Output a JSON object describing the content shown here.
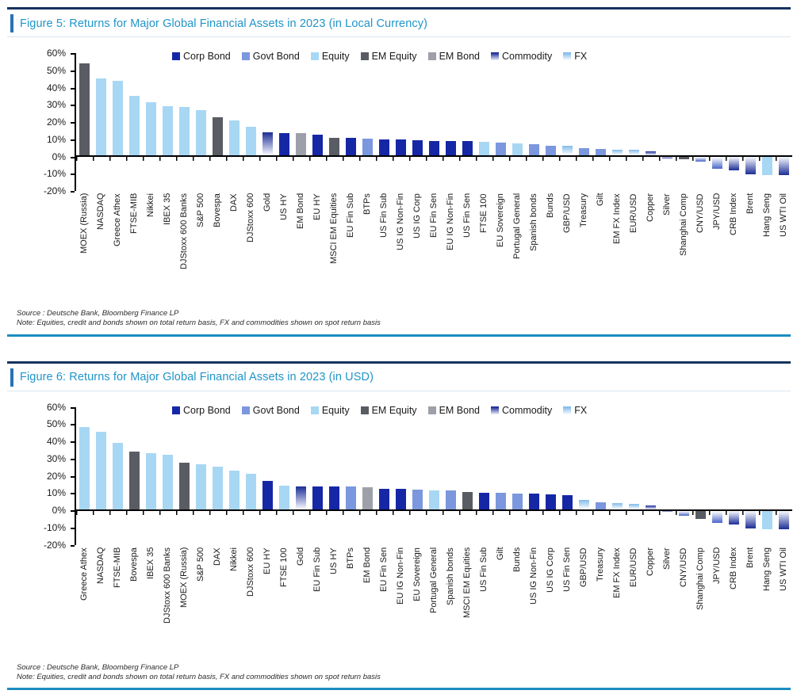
{
  "colors": {
    "corp_bond": "#1627a6",
    "govt_bond": "#7b97de",
    "equity": "#a8d7f4",
    "em_equity": "#5a5c64",
    "em_bond": "#9da0a9",
    "commodity": "#1c2d96",
    "fx_positive": "#82bbeb",
    "fx_negative": "#4b66c8",
    "title_text": "#2095c8",
    "title_accent": "#2a72b5",
    "top_rule": "#14335f",
    "bottom_rule": "#1b8dc0"
  },
  "chart_data": [
    {
      "type": "bar",
      "title": "Figure 5: Returns for Major Global Financial Assets in 2023 (in Local Currency)",
      "source": "Source : Deutsche Bank, Bloomberg Finance LP",
      "note": "Note: Equities, credit and bonds shown on total return basis, FX and commodities shown on spot return basis",
      "ylim": [
        -20,
        60
      ],
      "ytick_step": 10,
      "grid": false,
      "legend_position": "top",
      "y_ticks": [
        "60%",
        "50%",
        "40%",
        "30%",
        "20%",
        "10%",
        "0%",
        "-10%",
        "-20%"
      ],
      "legend": [
        {
          "label": "Corp Bond",
          "category": "corp-bond"
        },
        {
          "label": "Govt Bond",
          "category": "govt-bond"
        },
        {
          "label": "Equity",
          "category": "equity"
        },
        {
          "label": "EM Equity",
          "category": "em-equity"
        },
        {
          "label": "EM Bond",
          "category": "em-bond"
        },
        {
          "label": "Commodity",
          "category": "commodity"
        },
        {
          "label": "FX",
          "category": "fx"
        }
      ],
      "bars": [
        {
          "label": "MOEX (Russia)",
          "value": 53.5,
          "category": "em-equity"
        },
        {
          "label": "NASDAQ",
          "value": 44.7,
          "category": "equity"
        },
        {
          "label": "Greece Athex",
          "value": 43.4,
          "category": "equity"
        },
        {
          "label": "FTSE-MIB",
          "value": 34.3,
          "category": "equity"
        },
        {
          "label": "Nikkei",
          "value": 31.0,
          "category": "equity"
        },
        {
          "label": "IBEX 35",
          "value": 28.3,
          "category": "equity"
        },
        {
          "label": "DJStoxx 600 Banks",
          "value": 27.9,
          "category": "equity"
        },
        {
          "label": "S&P 500",
          "value": 26.3,
          "category": "equity"
        },
        {
          "label": "Bovespa",
          "value": 22.3,
          "category": "em-equity"
        },
        {
          "label": "DAX",
          "value": 20.3,
          "category": "equity"
        },
        {
          "label": "DJStoxx 600",
          "value": 16.6,
          "category": "equity"
        },
        {
          "label": "Gold",
          "value": 13.2,
          "category": "commodity"
        },
        {
          "label": "US HY",
          "value": 13.1,
          "category": "corp-bond"
        },
        {
          "label": "EM Bond",
          "value": 12.8,
          "category": "em-bond"
        },
        {
          "label": "EU HY",
          "value": 12.1,
          "category": "corp-bond"
        },
        {
          "label": "MSCI EM Equities",
          "value": 10.3,
          "category": "em-equity"
        },
        {
          "label": "EU Fin Sub",
          "value": 10.0,
          "category": "corp-bond"
        },
        {
          "label": "BTPs",
          "value": 9.7,
          "category": "govt-bond"
        },
        {
          "label": "US Fin Sub",
          "value": 9.4,
          "category": "corp-bond"
        },
        {
          "label": "US IG Non-Fin",
          "value": 9.0,
          "category": "corp-bond"
        },
        {
          "label": "US IG Corp",
          "value": 8.6,
          "category": "corp-bond"
        },
        {
          "label": "EU Fin Sen",
          "value": 8.5,
          "category": "corp-bond"
        },
        {
          "label": "EU IG Non-Fin",
          "value": 8.4,
          "category": "corp-bond"
        },
        {
          "label": "US Fin Sen",
          "value": 8.2,
          "category": "corp-bond"
        },
        {
          "label": "FTSE 100",
          "value": 7.9,
          "category": "equity"
        },
        {
          "label": "EU Sovereign",
          "value": 7.2,
          "category": "govt-bond"
        },
        {
          "label": "Portugal General",
          "value": 7.0,
          "category": "equity"
        },
        {
          "label": "Spanish bonds",
          "value": 6.5,
          "category": "govt-bond"
        },
        {
          "label": "Bunds",
          "value": 5.6,
          "category": "govt-bond"
        },
        {
          "label": "GBP/USD",
          "value": 5.4,
          "category": "fx"
        },
        {
          "label": "Treasury",
          "value": 4.1,
          "category": "govt-bond"
        },
        {
          "label": "Gilt",
          "value": 3.6,
          "category": "govt-bond"
        },
        {
          "label": "EM FX Index",
          "value": 3.3,
          "category": "fx"
        },
        {
          "label": "EUR/USD",
          "value": 3.1,
          "category": "fx"
        },
        {
          "label": "Copper",
          "value": 2.2,
          "category": "commodity"
        },
        {
          "label": "Silver",
          "value": -0.7,
          "category": "commodity"
        },
        {
          "label": "Shanghai Comp",
          "value": -1.2,
          "category": "em-equity"
        },
        {
          "label": "CNY/USD",
          "value": -2.8,
          "category": "fx"
        },
        {
          "label": "JPY/USD",
          "value": -7.0,
          "category": "fx"
        },
        {
          "label": "CRB Index",
          "value": -7.9,
          "category": "commodity"
        },
        {
          "label": "Brent",
          "value": -10.3,
          "category": "commodity"
        },
        {
          "label": "Hang Seng",
          "value": -10.5,
          "category": "equity"
        },
        {
          "label": "US WTI Oil",
          "value": -10.7,
          "category": "commodity"
        }
      ]
    },
    {
      "type": "bar",
      "title": "Figure 6: Returns for Major Global Financial Assets in 2023 (in USD)",
      "source": "Source : Deutsche Bank, Bloomberg Finance LP",
      "note": "Note: Equities, credit and bonds shown on total return basis, FX and commodities shown on spot return basis",
      "ylim": [
        -20,
        60
      ],
      "ytick_step": 10,
      "grid": false,
      "legend_position": "top",
      "y_ticks": [
        "60%",
        "50%",
        "40%",
        "30%",
        "20%",
        "10%",
        "0%",
        "-10%",
        "-20%"
      ],
      "legend": [
        {
          "label": "Corp Bond",
          "category": "corp-bond"
        },
        {
          "label": "Govt Bond",
          "category": "govt-bond"
        },
        {
          "label": "Equity",
          "category": "equity"
        },
        {
          "label": "EM Equity",
          "category": "em-equity"
        },
        {
          "label": "EM Bond",
          "category": "em-bond"
        },
        {
          "label": "Commodity",
          "category": "commodity"
        },
        {
          "label": "FX",
          "category": "fx"
        }
      ],
      "bars": [
        {
          "label": "Greece Athex",
          "value": 47.8,
          "category": "equity"
        },
        {
          "label": "NASDAQ",
          "value": 44.7,
          "category": "equity"
        },
        {
          "label": "FTSE-MIB",
          "value": 38.5,
          "category": "equity"
        },
        {
          "label": "Bovespa",
          "value": 33.2,
          "category": "em-equity"
        },
        {
          "label": "IBEX 35",
          "value": 32.3,
          "category": "equity"
        },
        {
          "label": "DJStoxx 600 Banks",
          "value": 31.8,
          "category": "equity"
        },
        {
          "label": "MOEX (Russia)",
          "value": 27.2,
          "category": "em-equity"
        },
        {
          "label": "S&P 500",
          "value": 26.3,
          "category": "equity"
        },
        {
          "label": "DAX",
          "value": 24.5,
          "category": "equity"
        },
        {
          "label": "Nikkei",
          "value": 22.3,
          "category": "equity"
        },
        {
          "label": "DJStoxx 600",
          "value": 20.7,
          "category": "equity"
        },
        {
          "label": "EU HY",
          "value": 16.2,
          "category": "corp-bond"
        },
        {
          "label": "FTSE 100",
          "value": 13.8,
          "category": "equity"
        },
        {
          "label": "Gold",
          "value": 13.2,
          "category": "commodity"
        },
        {
          "label": "EU Fin Sub",
          "value": 13.1,
          "category": "corp-bond"
        },
        {
          "label": "US HY",
          "value": 13.1,
          "category": "corp-bond"
        },
        {
          "label": "BTPs",
          "value": 13.0,
          "category": "govt-bond"
        },
        {
          "label": "EM Bond",
          "value": 12.8,
          "category": "em-bond"
        },
        {
          "label": "EU Fin Sen",
          "value": 12.0,
          "category": "corp-bond"
        },
        {
          "label": "EU IG Non-Fin",
          "value": 11.9,
          "category": "corp-bond"
        },
        {
          "label": "EU Sovereign",
          "value": 11.2,
          "category": "govt-bond"
        },
        {
          "label": "Portugal General",
          "value": 11.0,
          "category": "equity"
        },
        {
          "label": "Spanish bonds",
          "value": 10.8,
          "category": "govt-bond"
        },
        {
          "label": "MSCI EM Equities",
          "value": 10.2,
          "category": "em-equity"
        },
        {
          "label": "US Fin Sub",
          "value": 9.6,
          "category": "corp-bond"
        },
        {
          "label": "Gilt",
          "value": 9.4,
          "category": "govt-bond"
        },
        {
          "label": "Bunds",
          "value": 9.2,
          "category": "govt-bond"
        },
        {
          "label": "US IG Non-Fin",
          "value": 9.0,
          "category": "corp-bond"
        },
        {
          "label": "US IG Corp",
          "value": 8.6,
          "category": "corp-bond"
        },
        {
          "label": "US Fin Sen",
          "value": 8.2,
          "category": "corp-bond"
        },
        {
          "label": "GBP/USD",
          "value": 5.4,
          "category": "fx"
        },
        {
          "label": "Treasury",
          "value": 4.1,
          "category": "govt-bond"
        },
        {
          "label": "EM FX Index",
          "value": 3.4,
          "category": "fx"
        },
        {
          "label": "EUR/USD",
          "value": 3.1,
          "category": "fx"
        },
        {
          "label": "Copper",
          "value": 2.2,
          "category": "commodity"
        },
        {
          "label": "Silver",
          "value": -0.7,
          "category": "commodity"
        },
        {
          "label": "CNY/USD",
          "value": -2.8,
          "category": "fx"
        },
        {
          "label": "Shanghai Comp",
          "value": -4.6,
          "category": "em-equity"
        },
        {
          "label": "JPY/USD",
          "value": -7.0,
          "category": "fx"
        },
        {
          "label": "CRB Index",
          "value": -7.9,
          "category": "commodity"
        },
        {
          "label": "Brent",
          "value": -10.3,
          "category": "commodity"
        },
        {
          "label": "Hang Seng",
          "value": -10.5,
          "category": "equity"
        },
        {
          "label": "US WTI Oil",
          "value": -10.7,
          "category": "commodity"
        }
      ]
    }
  ]
}
